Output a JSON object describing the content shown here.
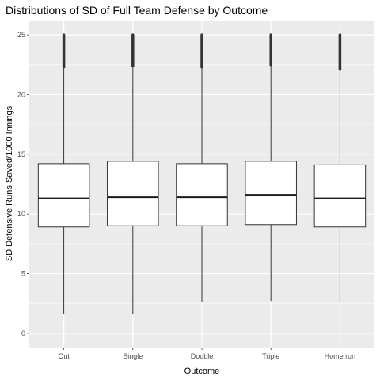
{
  "chart_data": {
    "type": "boxplot",
    "title": "Distributions of SD of Full Team Defense by Outcome",
    "xlabel": "Outcome",
    "ylabel": "SD Defensive Runs Saved/1000 Innings",
    "categories": [
      "Out",
      "Single",
      "Double",
      "Triple",
      "Home run"
    ],
    "ylim": [
      -1.2,
      26.2
    ],
    "yticks": [
      0,
      5,
      10,
      15,
      20,
      25
    ],
    "grid": true,
    "legend": "none",
    "colors": {
      "panel_background": "#ebebeb",
      "grid_line": "#ffffff",
      "box_fill": "#ffffff",
      "box_stroke": "#333333",
      "median_line": "#1a1a1a",
      "outlier": "#333333"
    },
    "boxes": [
      {
        "category": "Out",
        "whisker_low": 1.6,
        "q1": 8.9,
        "median": 11.3,
        "q3": 14.2,
        "whisker_high": 22.2,
        "outlier_low": 22.3,
        "outlier_high": 25.0
      },
      {
        "category": "Single",
        "whisker_low": 1.6,
        "q1": 9.0,
        "median": 11.4,
        "q3": 14.4,
        "whisker_high": 22.3,
        "outlier_low": 22.4,
        "outlier_high": 25.0
      },
      {
        "category": "Double",
        "whisker_low": 2.6,
        "q1": 9.0,
        "median": 11.4,
        "q3": 14.2,
        "whisker_high": 22.2,
        "outlier_low": 22.3,
        "outlier_high": 25.0
      },
      {
        "category": "Triple",
        "whisker_low": 2.7,
        "q1": 9.1,
        "median": 11.6,
        "q3": 14.4,
        "whisker_high": 22.4,
        "outlier_low": 22.5,
        "outlier_high": 25.0
      },
      {
        "category": "Home run",
        "whisker_low": 2.6,
        "q1": 8.9,
        "median": 11.3,
        "q3": 14.1,
        "whisker_high": 22.0,
        "outlier_low": 22.1,
        "outlier_high": 25.0
      }
    ]
  }
}
